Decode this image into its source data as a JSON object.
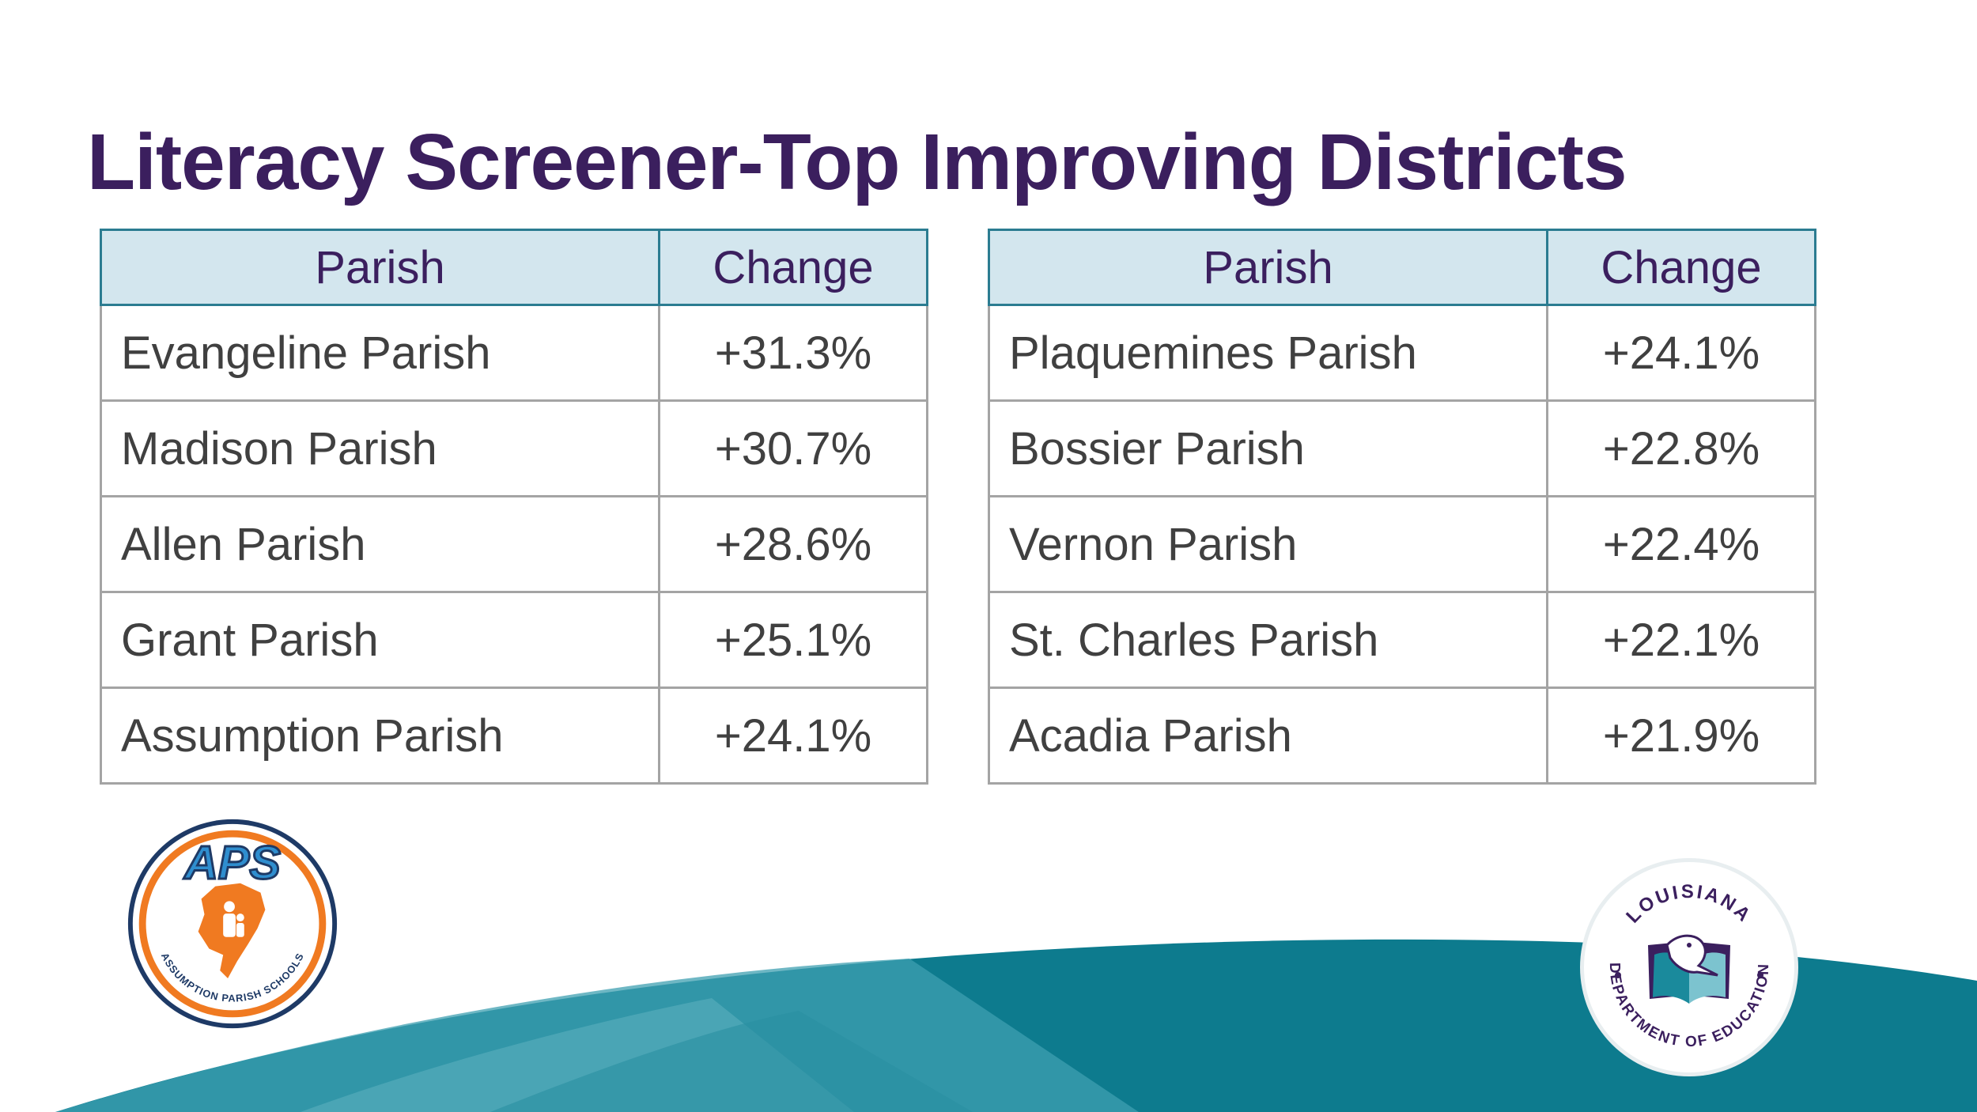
{
  "title": "Literacy Screener-Top Improving Districts",
  "tables": {
    "left": {
      "headers": {
        "parish": "Parish",
        "change": "Change"
      },
      "rows": [
        {
          "parish": "Evangeline Parish",
          "change": "+31.3%"
        },
        {
          "parish": "Madison Parish",
          "change": "+30.7%"
        },
        {
          "parish": "Allen Parish",
          "change": "+28.6%"
        },
        {
          "parish": "Grant Parish",
          "change": "+25.1%"
        },
        {
          "parish": "Assumption Parish",
          "change": "+24.1%"
        }
      ]
    },
    "right": {
      "headers": {
        "parish": "Parish",
        "change": "Change"
      },
      "rows": [
        {
          "parish": "Plaquemines Parish",
          "change": "+24.1%"
        },
        {
          "parish": "Bossier Parish",
          "change": "+22.8%"
        },
        {
          "parish": "Vernon Parish",
          "change": "+22.4%"
        },
        {
          "parish": "St. Charles Parish",
          "change": "+22.1%"
        },
        {
          "parish": "Acadia Parish",
          "change": "+21.9%"
        }
      ]
    }
  },
  "logos": {
    "aps": {
      "mark": "APS",
      "ring_text": "ASSUMPTION PARISH SCHOOLS"
    },
    "lde": {
      "top_text": "LOUISIANA",
      "bottom_text": "DEPARTMENT OF EDUCATION"
    }
  },
  "colors": {
    "title": "#3b1f5e",
    "header_fill": "#d3e6ee",
    "header_border": "#2b7c91",
    "cell_border": "#a4a4a4",
    "body_text": "#404040",
    "wave_dark": "#0d7b8e",
    "wave_light": "#3a9fb0",
    "aps_orange": "#f07a21",
    "aps_navy": "#1e3a66",
    "lde_purple": "#3b1f5e",
    "lde_teal": "#1a8a9c"
  }
}
